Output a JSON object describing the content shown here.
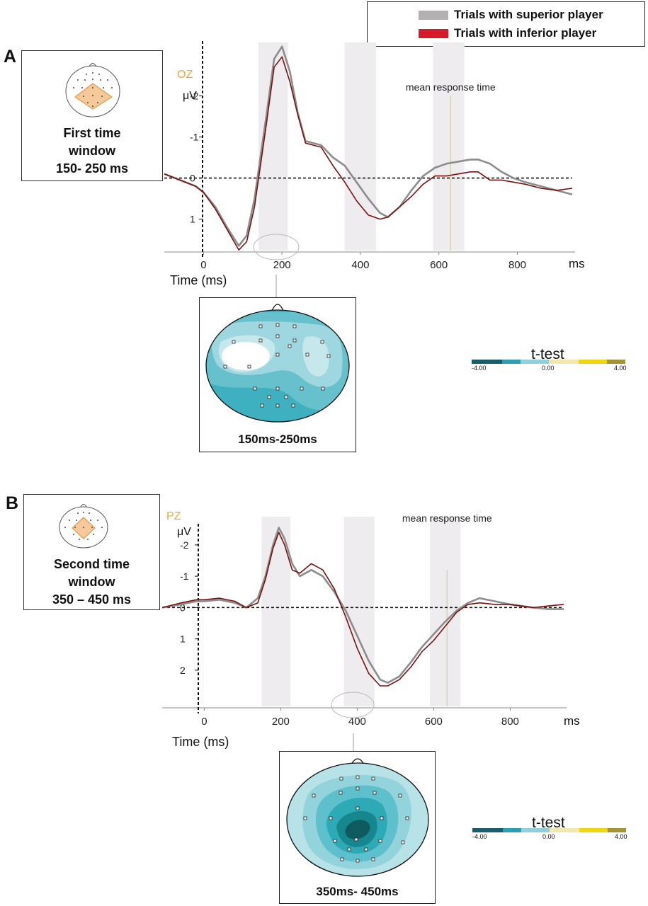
{
  "legend": {
    "superior_label": "Trials with superior player",
    "inferior_label": "Trials with inferior player",
    "superior_color": "#b3b0b2",
    "inferior_color": "#d51a2c"
  },
  "panel_a": {
    "letter": "A",
    "electrode": "OZ",
    "box_line1": "First  time",
    "box_line2": "window",
    "box_line3": "150- 250 ms",
    "topo_caption": "150ms-250ms",
    "colorbar": {
      "title": "t-test",
      "min_label": "-4.00",
      "mid_label": "0.00",
      "max_label": "4.00"
    }
  },
  "panel_b": {
    "letter": "B",
    "electrode": "PZ",
    "box_line1": "Second time",
    "box_line2": "window",
    "box_line3": "350 – 450 ms",
    "topo_caption": "350ms- 450ms",
    "colorbar": {
      "title": "t-test",
      "min_label": "-4.00",
      "mid_label": "0.00",
      "max_label": "4.00"
    }
  },
  "chart_data": [
    {
      "type": "line",
      "electrode": "OZ",
      "xlabel": "Time (ms)",
      "x_unit_label": "ms",
      "ylabel": "μV",
      "y_inverted": true,
      "xlim": [
        -100,
        940
      ],
      "ylim": [
        -3.3,
        1.8
      ],
      "x_ticks": [
        0,
        200,
        400,
        600,
        800
      ],
      "y_ticks": [
        -2,
        -1,
        0,
        1
      ],
      "y_tick_labels": [
        "-2",
        "-1",
        "0",
        "1"
      ],
      "shaded_windows": [
        [
          140,
          215
        ],
        [
          360,
          440
        ],
        [
          585,
          665
        ]
      ],
      "annotation": {
        "text": "mean response time",
        "x": 630
      },
      "series": [
        {
          "name": "Trials with superior player",
          "color": "#8c8c8c",
          "x": [
            -100,
            -60,
            -20,
            0,
            30,
            60,
            90,
            110,
            130,
            160,
            180,
            200,
            220,
            240,
            260,
            280,
            300,
            330,
            360,
            390,
            420,
            450,
            470,
            500,
            530,
            560,
            590,
            620,
            650,
            680,
            700,
            730,
            760,
            790,
            820,
            860,
            900,
            940
          ],
          "y": [
            -0.1,
            0.05,
            0.2,
            0.35,
            0.7,
            1.2,
            1.65,
            1.4,
            0.5,
            -1.5,
            -2.9,
            -3.2,
            -2.6,
            -1.6,
            -0.9,
            -0.85,
            -0.8,
            -0.5,
            -0.3,
            0.1,
            0.5,
            0.85,
            0.95,
            0.7,
            0.3,
            -0.05,
            -0.25,
            -0.35,
            -0.4,
            -0.45,
            -0.45,
            -0.35,
            -0.15,
            0.0,
            0.1,
            0.2,
            0.3,
            0.4
          ]
        },
        {
          "name": "Trials with inferior player",
          "color": "#7a1010",
          "x": [
            -100,
            -60,
            -20,
            0,
            30,
            60,
            90,
            110,
            130,
            160,
            180,
            200,
            220,
            240,
            260,
            280,
            300,
            330,
            360,
            390,
            420,
            450,
            470,
            500,
            530,
            560,
            590,
            620,
            650,
            680,
            700,
            730,
            760,
            790,
            820,
            860,
            900,
            940
          ],
          "y": [
            -0.1,
            0.05,
            0.2,
            0.35,
            0.75,
            1.25,
            1.75,
            1.55,
            0.7,
            -1.3,
            -2.7,
            -2.95,
            -2.35,
            -1.55,
            -0.85,
            -0.8,
            -0.75,
            -0.3,
            0.1,
            0.55,
            0.9,
            1.0,
            0.95,
            0.7,
            0.45,
            0.15,
            -0.05,
            -0.05,
            -0.1,
            -0.15,
            -0.15,
            0.05,
            0.05,
            0.1,
            0.15,
            0.25,
            0.3,
            0.25
          ]
        }
      ]
    },
    {
      "type": "line",
      "electrode": "PZ",
      "xlabel": "Time (ms)",
      "x_unit_label": "ms",
      "ylabel": "μV",
      "y_inverted": true,
      "xlim": [
        -110,
        940
      ],
      "ylim": [
        -2.9,
        3.2
      ],
      "x_ticks": [
        0,
        200,
        400,
        600,
        800
      ],
      "y_ticks": [
        -2,
        -1,
        0,
        1,
        2
      ],
      "y_tick_labels": [
        "-2",
        "-1",
        "0",
        "1",
        "2"
      ],
      "shaded_windows": [
        [
          150,
          225
        ],
        [
          365,
          445
        ],
        [
          590,
          670
        ]
      ],
      "annotation": {
        "text": "mean response time",
        "x": 635
      },
      "series": [
        {
          "name": "Trials with superior player",
          "color": "#8c8c8c",
          "x": [
            -110,
            -60,
            -20,
            0,
            40,
            80,
            110,
            140,
            160,
            180,
            195,
            210,
            230,
            250,
            280,
            310,
            340,
            370,
            400,
            430,
            460,
            480,
            510,
            540,
            570,
            600,
            630,
            660,
            690,
            720,
            760,
            800,
            860,
            900,
            940
          ],
          "y": [
            0.0,
            -0.1,
            -0.2,
            -0.2,
            -0.25,
            -0.15,
            0.0,
            -0.3,
            -1.0,
            -2.0,
            -2.55,
            -2.2,
            -1.4,
            -1.0,
            -1.2,
            -1.0,
            -0.5,
            0.1,
            0.9,
            1.7,
            2.3,
            2.4,
            2.2,
            1.75,
            1.25,
            0.85,
            0.45,
            0.1,
            -0.15,
            -0.3,
            -0.2,
            -0.1,
            0.0,
            0.05,
            0.05
          ]
        },
        {
          "name": "Trials with inferior player",
          "color": "#7a1010",
          "x": [
            -110,
            -60,
            -20,
            0,
            40,
            80,
            110,
            140,
            160,
            180,
            195,
            210,
            230,
            250,
            280,
            310,
            340,
            370,
            400,
            430,
            460,
            480,
            510,
            540,
            570,
            600,
            630,
            660,
            690,
            720,
            760,
            800,
            860,
            900,
            940
          ],
          "y": [
            0.0,
            -0.15,
            -0.25,
            -0.25,
            -0.3,
            -0.2,
            0.0,
            -0.15,
            -0.9,
            -1.9,
            -2.4,
            -2.0,
            -1.2,
            -1.1,
            -1.4,
            -1.2,
            -0.6,
            0.3,
            1.3,
            2.1,
            2.5,
            2.5,
            2.3,
            1.9,
            1.4,
            1.05,
            0.6,
            0.15,
            -0.1,
            -0.15,
            -0.1,
            -0.1,
            0.0,
            -0.05,
            -0.1
          ]
        }
      ]
    }
  ]
}
